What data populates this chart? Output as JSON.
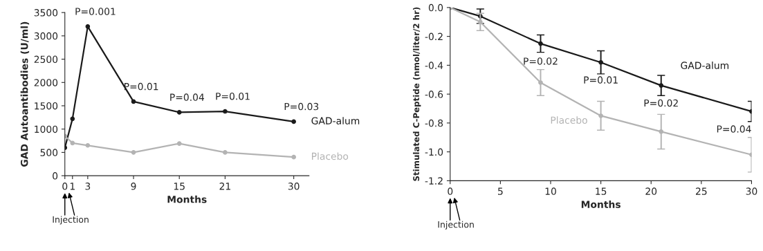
{
  "chart_data": [
    {
      "type": "line",
      "xlabel": "Months",
      "ylabel": "GAD Autoantibodies (U/ml)",
      "x": [
        0,
        1,
        3,
        9,
        15,
        21,
        30
      ],
      "series": [
        {
          "name": "GAD-alum",
          "color": "#1a1a1a",
          "values": [
            600,
            1220,
            3200,
            1590,
            1360,
            1380,
            1160
          ]
        },
        {
          "name": "Placebo",
          "color": "#b3b3b3",
          "values": [
            850,
            700,
            650,
            500,
            690,
            500,
            400
          ]
        }
      ],
      "xlim": [
        0,
        32
      ],
      "xticks": [
        0,
        1,
        3,
        9,
        15,
        21,
        30
      ],
      "ylim": [
        0,
        3500
      ],
      "yticks": [
        0,
        500,
        1000,
        1500,
        2000,
        2500,
        3000,
        3500
      ],
      "marker": "circle",
      "grid": false,
      "legend": false,
      "annotations": [
        {
          "text": "P=0.001",
          "x": 3,
          "y": 3200
        },
        {
          "text": "P=0.01",
          "x": 9,
          "y": 1590
        },
        {
          "text": "P=0.04",
          "x": 15,
          "y": 1360
        },
        {
          "text": "P=0.01",
          "x": 21,
          "y": 1380
        },
        {
          "text": "P=0.03",
          "x": 30,
          "y": 1160
        },
        "Injection"
      ]
    },
    {
      "type": "line",
      "xlabel": "Months",
      "ylabel": "Stimulated C-Peptide (nmol/liter/2 hr)",
      "x": [
        0,
        3,
        9,
        15,
        21,
        30
      ],
      "series": [
        {
          "name": "GAD-alum",
          "color": "#1a1a1a",
          "values": [
            0,
            -0.06,
            -0.25,
            -0.38,
            -0.54,
            -0.72
          ],
          "errors": [
            null,
            0.05,
            0.06,
            0.08,
            0.07,
            0.07
          ]
        },
        {
          "name": "Placebo",
          "color": "#b3b3b3",
          "values": [
            0,
            -0.1,
            -0.52,
            -0.75,
            -0.86,
            -1.02
          ],
          "errors": [
            null,
            0.06,
            0.09,
            0.1,
            0.12,
            0.12
          ]
        }
      ],
      "xlim": [
        0,
        30
      ],
      "xticks": [
        0,
        5,
        10,
        15,
        20,
        25,
        30
      ],
      "ylim": [
        -1.2,
        0
      ],
      "yticks": [
        {
          "value": 0,
          "label": "0.0"
        },
        {
          "value": -0.2,
          "label": "-0.2"
        },
        {
          "value": -0.4,
          "label": "-0.4"
        },
        {
          "value": -0.6,
          "label": "-0.6"
        },
        {
          "value": -0.8,
          "label": "-0.8"
        },
        {
          "value": -1.0,
          "label": "-1.0"
        },
        {
          "value": -1.2,
          "label": "-1.2"
        }
      ],
      "marker": "circle",
      "grid": false,
      "legend": false,
      "annotations": [
        {
          "text": "P=0.02",
          "x": 9,
          "y": -0.25
        },
        {
          "text": "P=0.01",
          "x": 15,
          "y": -0.38
        },
        {
          "text": "P=0.02",
          "x": 21,
          "y": -0.54
        },
        {
          "text": "P=0.04",
          "x": 30,
          "y": -0.72
        },
        "Injection"
      ]
    }
  ]
}
